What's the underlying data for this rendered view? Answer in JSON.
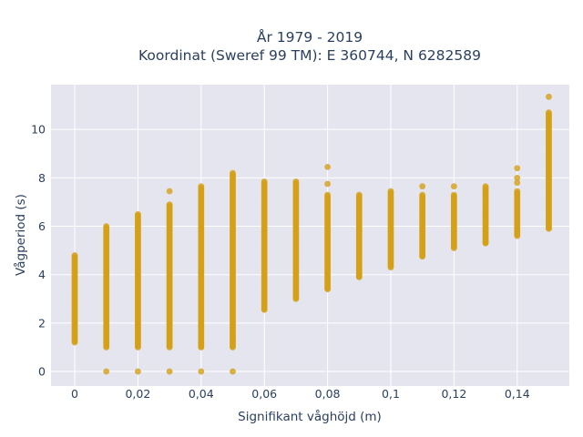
{
  "chart_data": {
    "type": "scatter",
    "title_line1": "År 1979 - 2019",
    "title_line2": "Koordinat (Sweref 99 TM): E 360744, N 6282589",
    "xlabel": "Signifikant våghöjd (m)",
    "ylabel": "Vågperiod (s)",
    "xlim": [
      -0.0075,
      0.1565
    ],
    "ylim": [
      -0.6,
      11.85
    ],
    "x_ticks": [
      0,
      0.02,
      0.04,
      0.06,
      0.08,
      0.1,
      0.12,
      0.14
    ],
    "x_tick_labels": [
      "0",
      "0,02",
      "0,04",
      "0,06",
      "0,08",
      "0,1",
      "0,12",
      "0,14"
    ],
    "y_ticks": [
      0,
      2,
      4,
      6,
      8,
      10
    ],
    "y_tick_labels": [
      "0",
      "2",
      "4",
      "6",
      "8",
      "10"
    ],
    "grid": true,
    "marker_color": "#D4A017",
    "plot_bg": "#E5E5F0",
    "columns": [
      {
        "x": 0,
        "ymin": 1.2,
        "ymax": 4.8,
        "outliers": []
      },
      {
        "x": 0.01,
        "ymin": 1.0,
        "ymax": 6.0,
        "outliers": [
          0
        ]
      },
      {
        "x": 0.02,
        "ymin": 1.0,
        "ymax": 6.5,
        "outliers": [
          0
        ]
      },
      {
        "x": 0.03,
        "ymin": 1.0,
        "ymax": 6.9,
        "outliers": [
          0,
          7.45
        ]
      },
      {
        "x": 0.04,
        "ymin": 1.0,
        "ymax": 7.65,
        "outliers": [
          0
        ]
      },
      {
        "x": 0.05,
        "ymin": 1.0,
        "ymax": 8.2,
        "outliers": [
          0,
          1.3
        ]
      },
      {
        "x": 0.06,
        "ymin": 2.55,
        "ymax": 7.85,
        "outliers": []
      },
      {
        "x": 0.07,
        "ymin": 3.0,
        "ymax": 7.85,
        "outliers": []
      },
      {
        "x": 0.08,
        "ymin": 3.4,
        "ymax": 7.3,
        "outliers": [
          7.75,
          8.45
        ]
      },
      {
        "x": 0.09,
        "ymin": 3.9,
        "ymax": 7.3,
        "outliers": []
      },
      {
        "x": 0.1,
        "ymin": 4.3,
        "ymax": 7.45,
        "outliers": []
      },
      {
        "x": 0.11,
        "ymin": 4.75,
        "ymax": 7.3,
        "outliers": [
          7.65
        ]
      },
      {
        "x": 0.12,
        "ymin": 5.1,
        "ymax": 7.3,
        "outliers": [
          7.65
        ]
      },
      {
        "x": 0.13,
        "ymin": 5.3,
        "ymax": 7.65,
        "outliers": []
      },
      {
        "x": 0.14,
        "ymin": 5.6,
        "ymax": 7.45,
        "outliers": [
          7.8,
          8.0,
          8.4
        ]
      },
      {
        "x": 0.15,
        "ymin": 5.9,
        "ymax": 10.7,
        "outliers": [
          11.35
        ]
      }
    ]
  }
}
